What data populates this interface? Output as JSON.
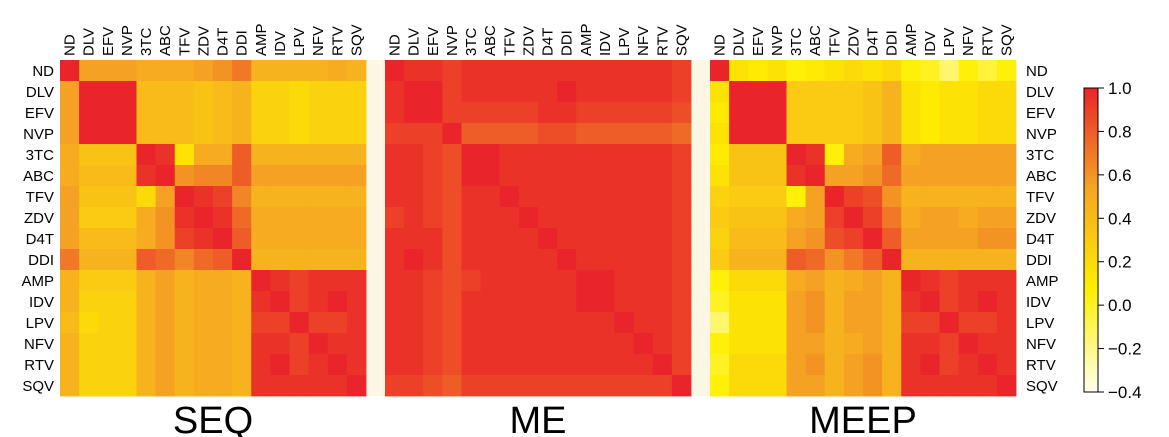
{
  "chart_data": {
    "type": "heatmap",
    "row_labels": [
      "ND",
      "DLV",
      "EFV",
      "NVP",
      "3TC",
      "ABC",
      "TFV",
      "ZDV",
      "D4T",
      "DDI",
      "AMP",
      "IDV",
      "LPV",
      "NFV",
      "RTV",
      "SQV"
    ],
    "col_labels": [
      "ND",
      "DLV",
      "EFV",
      "NVP",
      "3TC",
      "ABC",
      "TFV",
      "ZDV",
      "D4T",
      "DDI",
      "AMP",
      "IDV",
      "LPV",
      "NFV",
      "RTV",
      "SQV"
    ],
    "panels": [
      {
        "name": "SEQ",
        "values": [
          [
            1.0,
            0.55,
            0.55,
            0.55,
            0.5,
            0.5,
            0.5,
            0.55,
            0.6,
            0.7,
            0.45,
            0.45,
            0.45,
            0.45,
            0.5,
            0.45
          ],
          [
            0.55,
            1.0,
            1.0,
            1.0,
            0.4,
            0.4,
            0.4,
            0.35,
            0.4,
            0.45,
            0.25,
            0.25,
            0.2,
            0.25,
            0.25,
            0.25
          ],
          [
            0.55,
            1.0,
            1.0,
            1.0,
            0.4,
            0.4,
            0.4,
            0.35,
            0.4,
            0.45,
            0.25,
            0.25,
            0.2,
            0.25,
            0.25,
            0.25
          ],
          [
            0.55,
            1.0,
            1.0,
            1.0,
            0.4,
            0.4,
            0.4,
            0.35,
            0.4,
            0.45,
            0.25,
            0.25,
            0.2,
            0.25,
            0.25,
            0.25
          ],
          [
            0.5,
            0.35,
            0.35,
            0.35,
            1.0,
            0.95,
            0.15,
            0.5,
            0.5,
            0.8,
            0.45,
            0.45,
            0.45,
            0.45,
            0.45,
            0.45
          ],
          [
            0.5,
            0.4,
            0.4,
            0.4,
            0.95,
            1.0,
            0.6,
            0.65,
            0.65,
            0.8,
            0.55,
            0.55,
            0.55,
            0.55,
            0.55,
            0.55
          ],
          [
            0.55,
            0.35,
            0.35,
            0.35,
            0.2,
            0.55,
            1.0,
            0.95,
            0.9,
            0.65,
            0.45,
            0.45,
            0.45,
            0.45,
            0.45,
            0.45
          ],
          [
            0.55,
            0.3,
            0.3,
            0.3,
            0.5,
            0.6,
            0.95,
            1.0,
            0.95,
            0.75,
            0.5,
            0.5,
            0.5,
            0.5,
            0.5,
            0.5
          ],
          [
            0.55,
            0.4,
            0.4,
            0.4,
            0.5,
            0.6,
            0.9,
            0.95,
            1.0,
            0.8,
            0.5,
            0.5,
            0.5,
            0.5,
            0.5,
            0.5
          ],
          [
            0.7,
            0.45,
            0.45,
            0.45,
            0.8,
            0.75,
            0.65,
            0.75,
            0.8,
            1.0,
            0.45,
            0.45,
            0.45,
            0.45,
            0.45,
            0.45
          ],
          [
            0.45,
            0.3,
            0.3,
            0.3,
            0.45,
            0.55,
            0.45,
            0.5,
            0.5,
            0.45,
            1.0,
            0.95,
            0.9,
            0.95,
            0.95,
            0.95
          ],
          [
            0.45,
            0.25,
            0.25,
            0.25,
            0.45,
            0.55,
            0.45,
            0.5,
            0.5,
            0.45,
            0.95,
            1.0,
            0.9,
            0.95,
            1.0,
            0.95
          ],
          [
            0.4,
            0.2,
            0.25,
            0.25,
            0.45,
            0.55,
            0.45,
            0.5,
            0.5,
            0.45,
            0.9,
            0.9,
            1.0,
            0.9,
            0.9,
            0.95
          ],
          [
            0.45,
            0.25,
            0.25,
            0.25,
            0.45,
            0.55,
            0.45,
            0.5,
            0.5,
            0.45,
            0.95,
            0.95,
            0.9,
            1.0,
            0.95,
            0.95
          ],
          [
            0.45,
            0.25,
            0.25,
            0.25,
            0.45,
            0.55,
            0.45,
            0.5,
            0.5,
            0.45,
            0.95,
            1.0,
            0.9,
            0.95,
            1.0,
            0.95
          ],
          [
            0.45,
            0.25,
            0.25,
            0.25,
            0.45,
            0.55,
            0.45,
            0.5,
            0.5,
            0.45,
            0.95,
            0.95,
            0.95,
            0.95,
            0.95,
            1.0
          ]
        ]
      },
      {
        "name": "ME",
        "values": [
          [
            1.0,
            0.95,
            0.95,
            0.9,
            0.95,
            0.95,
            0.95,
            0.95,
            0.95,
            0.95,
            0.95,
            0.95,
            0.95,
            0.95,
            0.95,
            0.9
          ],
          [
            0.95,
            1.0,
            1.0,
            0.9,
            0.95,
            0.95,
            0.95,
            0.95,
            0.95,
            1.0,
            0.95,
            0.95,
            0.95,
            0.95,
            0.95,
            0.9
          ],
          [
            0.95,
            1.0,
            1.0,
            0.9,
            0.9,
            0.9,
            0.9,
            0.9,
            0.95,
            0.95,
            0.9,
            0.9,
            0.9,
            0.9,
            0.9,
            0.85
          ],
          [
            0.9,
            0.9,
            0.9,
            1.0,
            0.8,
            0.8,
            0.8,
            0.8,
            0.85,
            0.85,
            0.8,
            0.8,
            0.8,
            0.8,
            0.8,
            0.75
          ],
          [
            0.95,
            0.95,
            0.9,
            0.85,
            1.0,
            1.0,
            0.95,
            0.95,
            0.95,
            0.95,
            0.95,
            0.95,
            0.95,
            0.95,
            0.95,
            0.9
          ],
          [
            0.95,
            0.95,
            0.9,
            0.85,
            1.0,
            1.0,
            0.95,
            0.95,
            0.95,
            0.95,
            0.95,
            0.95,
            0.95,
            0.95,
            0.95,
            0.9
          ],
          [
            0.95,
            0.95,
            0.9,
            0.85,
            0.95,
            0.95,
            1.0,
            0.95,
            0.95,
            0.95,
            0.95,
            0.95,
            0.95,
            0.95,
            0.95,
            0.9
          ],
          [
            0.9,
            0.95,
            0.9,
            0.85,
            0.95,
            0.95,
            0.95,
            1.0,
            0.95,
            0.95,
            0.95,
            0.95,
            0.95,
            0.95,
            0.95,
            0.9
          ],
          [
            0.95,
            0.95,
            0.95,
            0.85,
            0.95,
            0.95,
            0.95,
            0.95,
            1.0,
            0.95,
            0.95,
            0.95,
            0.95,
            0.95,
            0.95,
            0.9
          ],
          [
            0.95,
            1.0,
            0.95,
            0.85,
            0.95,
            0.95,
            0.95,
            0.95,
            0.95,
            1.0,
            0.95,
            0.95,
            0.95,
            0.95,
            0.95,
            0.9
          ],
          [
            0.95,
            0.95,
            0.9,
            0.85,
            0.9,
            0.95,
            0.95,
            0.95,
            0.95,
            0.95,
            1.0,
            1.0,
            0.95,
            0.95,
            0.95,
            0.9
          ],
          [
            0.95,
            0.95,
            0.9,
            0.85,
            0.95,
            0.95,
            0.95,
            0.95,
            0.95,
            0.95,
            1.0,
            1.0,
            0.95,
            0.95,
            0.95,
            0.9
          ],
          [
            0.95,
            0.95,
            0.9,
            0.85,
            0.95,
            0.95,
            0.95,
            0.95,
            0.95,
            0.95,
            0.95,
            0.95,
            1.0,
            0.95,
            0.95,
            0.9
          ],
          [
            0.95,
            0.95,
            0.9,
            0.85,
            0.95,
            0.95,
            0.95,
            0.95,
            0.95,
            0.95,
            0.95,
            0.95,
            0.95,
            1.0,
            0.95,
            0.9
          ],
          [
            0.95,
            0.95,
            0.9,
            0.85,
            0.95,
            0.95,
            0.95,
            0.95,
            0.95,
            0.95,
            0.95,
            0.95,
            0.95,
            0.95,
            1.0,
            0.9
          ],
          [
            0.9,
            0.9,
            0.85,
            0.8,
            0.9,
            0.9,
            0.9,
            0.9,
            0.9,
            0.9,
            0.9,
            0.9,
            0.9,
            0.9,
            0.9,
            1.0
          ]
        ]
      },
      {
        "name": "MEEP",
        "values": [
          [
            1.0,
            0.15,
            0.1,
            0.15,
            0.05,
            0.1,
            0.15,
            0.2,
            0.15,
            0.2,
            0.05,
            0.0,
            -0.15,
            0.05,
            -0.05,
            0.05
          ],
          [
            0.15,
            1.0,
            1.0,
            1.0,
            0.3,
            0.3,
            0.3,
            0.3,
            0.35,
            0.45,
            0.15,
            0.1,
            0.15,
            0.15,
            0.2,
            0.2
          ],
          [
            0.1,
            1.0,
            1.0,
            1.0,
            0.3,
            0.3,
            0.3,
            0.3,
            0.35,
            0.45,
            0.15,
            0.1,
            0.15,
            0.15,
            0.2,
            0.2
          ],
          [
            0.15,
            1.0,
            1.0,
            1.0,
            0.3,
            0.3,
            0.3,
            0.3,
            0.35,
            0.45,
            0.15,
            0.1,
            0.15,
            0.15,
            0.2,
            0.2
          ],
          [
            0.1,
            0.35,
            0.35,
            0.35,
            1.0,
            0.95,
            0.05,
            0.5,
            0.55,
            0.8,
            0.5,
            0.55,
            0.55,
            0.55,
            0.55,
            0.55
          ],
          [
            0.15,
            0.35,
            0.35,
            0.35,
            0.95,
            1.0,
            0.55,
            0.55,
            0.6,
            0.75,
            0.55,
            0.55,
            0.55,
            0.55,
            0.55,
            0.55
          ],
          [
            0.25,
            0.3,
            0.3,
            0.3,
            0.05,
            0.55,
            1.0,
            0.9,
            0.85,
            0.6,
            0.45,
            0.45,
            0.45,
            0.45,
            0.45,
            0.45
          ],
          [
            0.3,
            0.35,
            0.35,
            0.35,
            0.5,
            0.55,
            0.9,
            1.0,
            0.9,
            0.7,
            0.5,
            0.55,
            0.55,
            0.5,
            0.55,
            0.55
          ],
          [
            0.25,
            0.4,
            0.4,
            0.4,
            0.55,
            0.6,
            0.85,
            0.9,
            1.0,
            0.8,
            0.55,
            0.55,
            0.55,
            0.55,
            0.6,
            0.6
          ],
          [
            0.3,
            0.45,
            0.45,
            0.45,
            0.8,
            0.75,
            0.6,
            0.7,
            0.8,
            1.0,
            0.45,
            0.45,
            0.45,
            0.45,
            0.45,
            0.45
          ],
          [
            0.05,
            0.2,
            0.2,
            0.2,
            0.5,
            0.55,
            0.45,
            0.5,
            0.55,
            0.45,
            1.0,
            0.95,
            0.9,
            0.95,
            0.95,
            0.95
          ],
          [
            0.0,
            0.15,
            0.15,
            0.15,
            0.55,
            0.6,
            0.45,
            0.55,
            0.55,
            0.45,
            0.95,
            1.0,
            0.9,
            0.95,
            1.0,
            0.95
          ],
          [
            -0.15,
            0.15,
            0.15,
            0.15,
            0.55,
            0.6,
            0.45,
            0.55,
            0.55,
            0.45,
            0.9,
            0.9,
            1.0,
            0.9,
            0.9,
            0.95
          ],
          [
            0.05,
            0.15,
            0.15,
            0.15,
            0.55,
            0.55,
            0.45,
            0.5,
            0.55,
            0.45,
            0.95,
            0.95,
            0.9,
            1.0,
            0.95,
            0.95
          ],
          [
            0.0,
            0.2,
            0.2,
            0.2,
            0.55,
            0.6,
            0.45,
            0.55,
            0.6,
            0.45,
            0.95,
            1.0,
            0.9,
            0.95,
            1.0,
            0.95
          ],
          [
            0.05,
            0.2,
            0.2,
            0.2,
            0.55,
            0.55,
            0.45,
            0.55,
            0.6,
            0.45,
            0.95,
            0.95,
            0.95,
            0.95,
            0.95,
            1.0
          ]
        ]
      }
    ],
    "colorbar": {
      "min": -0.4,
      "max": 1.0,
      "ticks": [
        1.0,
        0.8,
        0.6,
        0.4,
        0.2,
        0.0,
        -0.2,
        -0.4
      ],
      "tick_labels": [
        "1.0",
        "0.8",
        "0.6",
        "0.4",
        "0.2",
        "0.0",
        "−0.2",
        "−0.4"
      ],
      "colors": [
        "#fffff0",
        "#ffef00",
        "#f5a623",
        "#e9242a"
      ]
    }
  }
}
